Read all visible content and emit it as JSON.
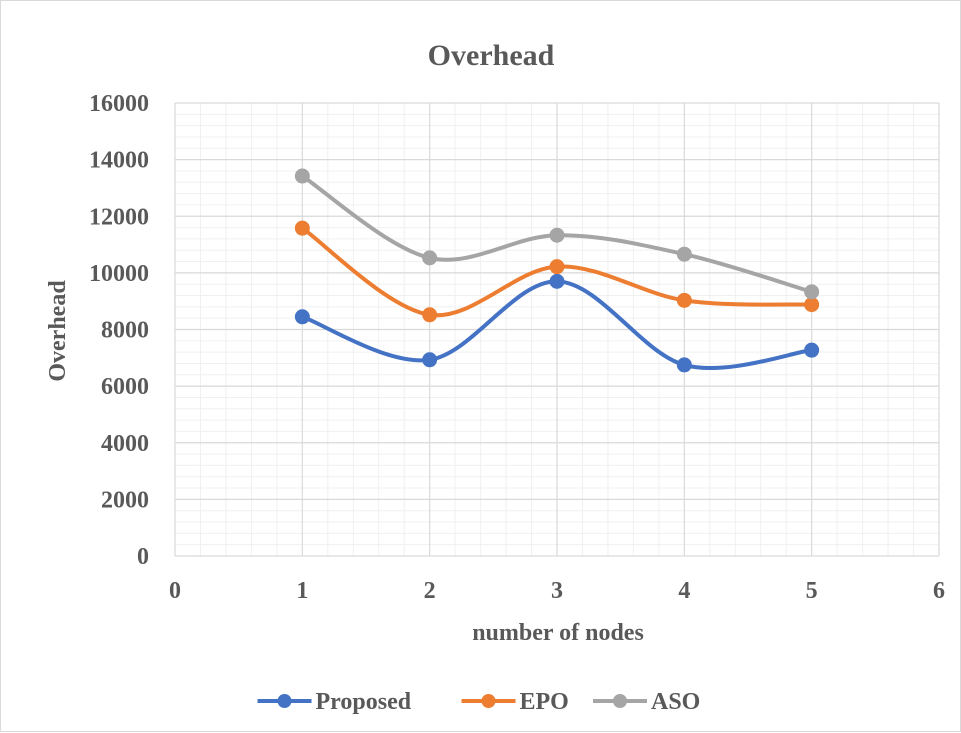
{
  "chart_data": {
    "type": "line",
    "title": "Overhead",
    "xlabel": "number of nodes",
    "ylabel": "Overhead",
    "xlim": [
      0,
      6
    ],
    "ylim": [
      0,
      16000
    ],
    "xticks": [
      0,
      1,
      2,
      3,
      4,
      5,
      6
    ],
    "yticks": [
      0,
      2000,
      4000,
      6000,
      8000,
      10000,
      12000,
      14000,
      16000
    ],
    "x": [
      1,
      2,
      3,
      4,
      5
    ],
    "smooth": true,
    "grid": {
      "major": true,
      "minor": true
    },
    "legend_position": "bottom",
    "series": [
      {
        "name": "Proposed",
        "color": "#4472C4",
        "values": [
          8450,
          6930,
          9700,
          6750,
          7270
        ]
      },
      {
        "name": "EPO",
        "color": "#ED7D31",
        "values": [
          11580,
          8520,
          10220,
          9030,
          8880
        ]
      },
      {
        "name": "ASO",
        "color": "#A5A5A5",
        "values": [
          13420,
          10530,
          11330,
          10660,
          9330
        ]
      }
    ]
  }
}
